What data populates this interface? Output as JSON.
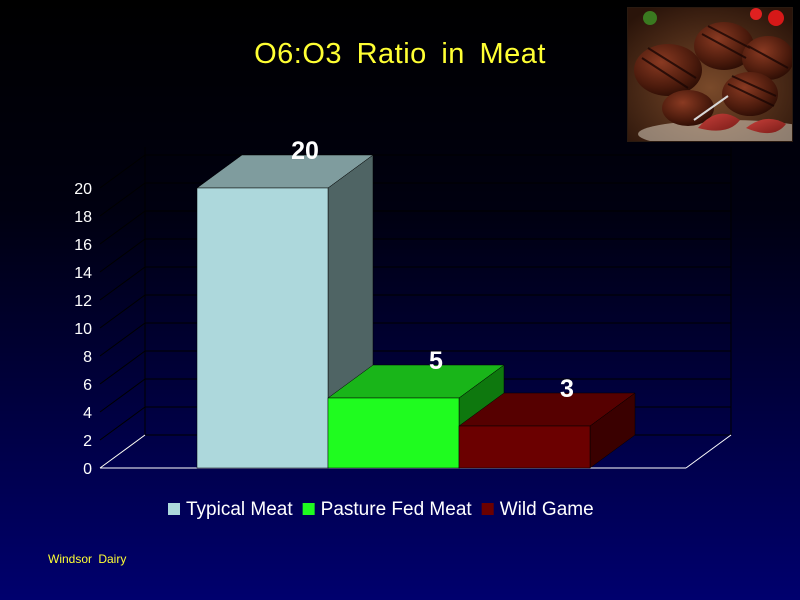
{
  "slide": {
    "title": "O6:O3  Ratio  in  Meat",
    "footer": "Windsor  Dairy",
    "photo_icon": "grilled-steak-photo"
  },
  "chart_data": {
    "type": "bar",
    "title": "O6:O3  Ratio  in  Meat",
    "style": "3d",
    "xlabel": "",
    "ylabel": "",
    "ylim": [
      0,
      20
    ],
    "y_ticks": [
      "0",
      "2",
      "4",
      "6",
      "8",
      "10",
      "12",
      "14",
      "16",
      "18",
      "20"
    ],
    "grid": true,
    "legend_position": "bottom",
    "series": [
      {
        "name": "Typical Meat",
        "value": 20,
        "label": "20",
        "color": "#add8dc",
        "top_color": "#7f9c9e",
        "side_color": "#4f6464"
      },
      {
        "name": "Pasture Fed Meat",
        "value": 5,
        "label": "5",
        "color": "#1ffc1f",
        "top_color": "#19b519",
        "side_color": "#0e780e"
      },
      {
        "name": "Wild Game",
        "value": 3,
        "label": "3",
        "color": "#6b0000",
        "top_color": "#560000",
        "side_color": "#3a0000"
      }
    ]
  }
}
